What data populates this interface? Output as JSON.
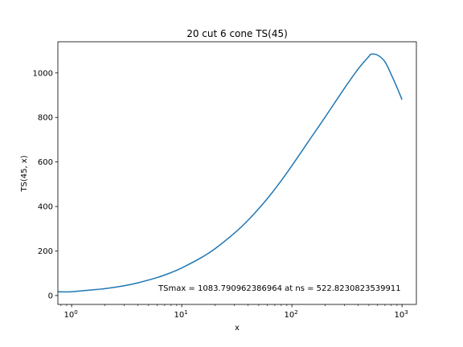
{
  "chart_data": {
    "type": "line",
    "title": "20 cut 6 cone TS(45)",
    "xlabel": "x",
    "ylabel": "TS(45, x)",
    "xscale": "log",
    "xlim": [
      0.75,
      1350
    ],
    "ylim": [
      -40,
      1140
    ],
    "grid": false,
    "xticks": [
      {
        "value": 1,
        "base": "10",
        "exp": "0"
      },
      {
        "value": 10,
        "base": "10",
        "exp": "1"
      },
      {
        "value": 100,
        "base": "10",
        "exp": "2"
      },
      {
        "value": 1000,
        "base": "10",
        "exp": "3"
      }
    ],
    "yticks": [
      0,
      200,
      400,
      600,
      800,
      1000
    ],
    "annotation": "TSmax = 1083.790962386964 at ns = 522.8230823539911",
    "series": [
      {
        "color": "#1f77b4",
        "x": [
          0.75,
          1,
          1.5,
          2,
          3,
          4,
          6,
          8,
          10,
          15,
          20,
          30,
          40,
          60,
          80,
          100,
          150,
          200,
          300,
          400,
          500,
          522.8,
          600,
          700,
          800,
          900,
          1000
        ],
        "y": [
          17,
          17,
          25,
          31,
          44,
          57,
          81,
          103,
          124,
          170,
          210,
          280,
          338,
          436,
          516,
          583,
          711,
          801,
          931,
          1018,
          1074,
          1084,
          1080,
          1050,
          992,
          935,
          880
        ]
      }
    ]
  }
}
